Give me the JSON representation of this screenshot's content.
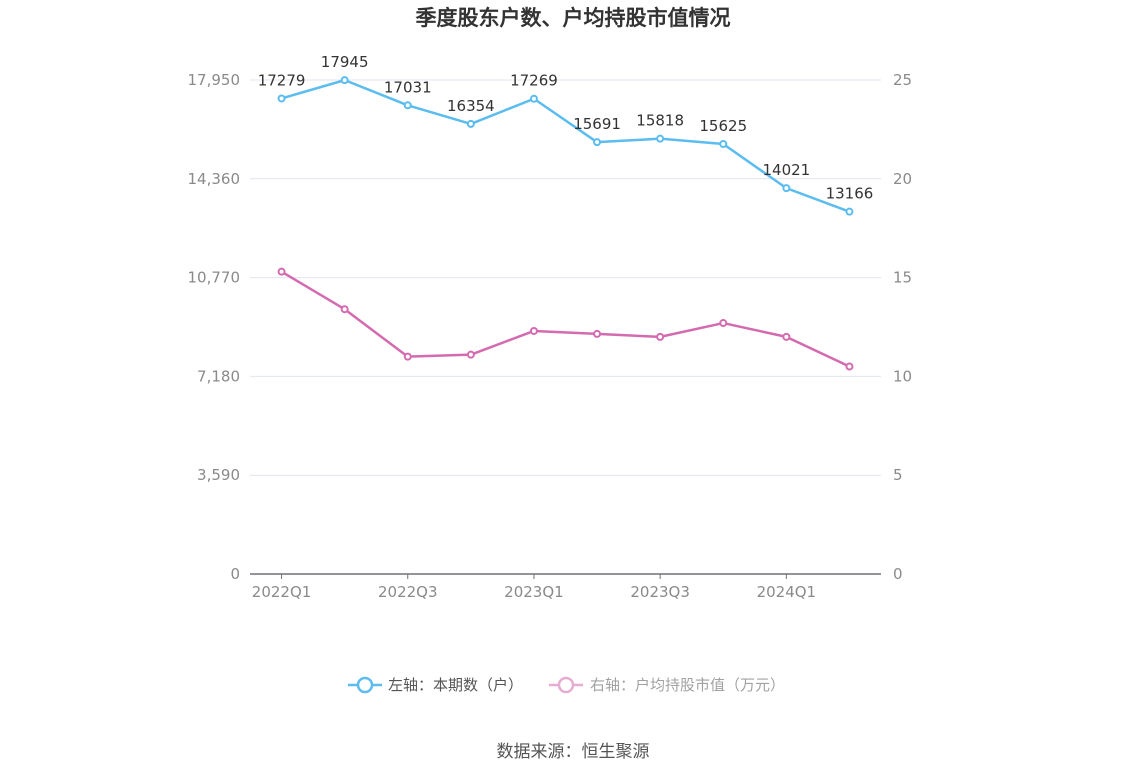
{
  "title": "季度股东户数、户均持股市值情况",
  "source": "数据来源：恒生聚源",
  "colors": {
    "left_series": "#5bbcef",
    "right_series": "#d46aaf",
    "grid": "#e1e4ef",
    "axis": "#6e7079"
  },
  "chart_data": {
    "type": "line",
    "title": "季度股东户数、户均持股市值情况",
    "categories": [
      "2022Q1",
      "2022Q2",
      "2022Q3",
      "2022Q4",
      "2023Q1",
      "2023Q2",
      "2023Q3",
      "2023Q4",
      "2024Q1",
      "2024Q2"
    ],
    "x_tick_labels": [
      "2022Q1",
      "",
      "2022Q3",
      "",
      "2023Q1",
      "",
      "2023Q3",
      "",
      "2024Q1",
      ""
    ],
    "left_axis": {
      "ylim": [
        0,
        17950
      ],
      "ticks": [
        0,
        3590,
        7180,
        10770,
        14360,
        17950
      ],
      "tick_labels": [
        "0",
        "3,590",
        "7,180",
        "10,770",
        "14,360",
        "17,950"
      ]
    },
    "right_axis": {
      "ylim": [
        0,
        25
      ],
      "ticks": [
        0,
        5,
        10,
        15,
        20,
        25
      ],
      "tick_labels": [
        "0",
        "5",
        "10",
        "15",
        "20",
        "25"
      ]
    },
    "grid": true,
    "legend_position": "bottom-center",
    "series": [
      {
        "name": "左轴：本期数（户）",
        "axis": "left",
        "values": [
          17279,
          17945,
          17031,
          16354,
          17269,
          15691,
          15818,
          15625,
          14021,
          13166
        ],
        "labels": [
          "17279",
          "17945",
          "17031",
          "16354",
          "17269",
          "15691",
          "15818",
          "15625",
          "14021",
          "13166"
        ],
        "show_labels": true
      },
      {
        "name": "右轴：户均持股市值（万元）",
        "axis": "right",
        "values": [
          15.3,
          13.4,
          11.0,
          11.1,
          12.3,
          12.15,
          12.0,
          12.7,
          12.0,
          10.5
        ],
        "show_labels": false
      }
    ]
  }
}
